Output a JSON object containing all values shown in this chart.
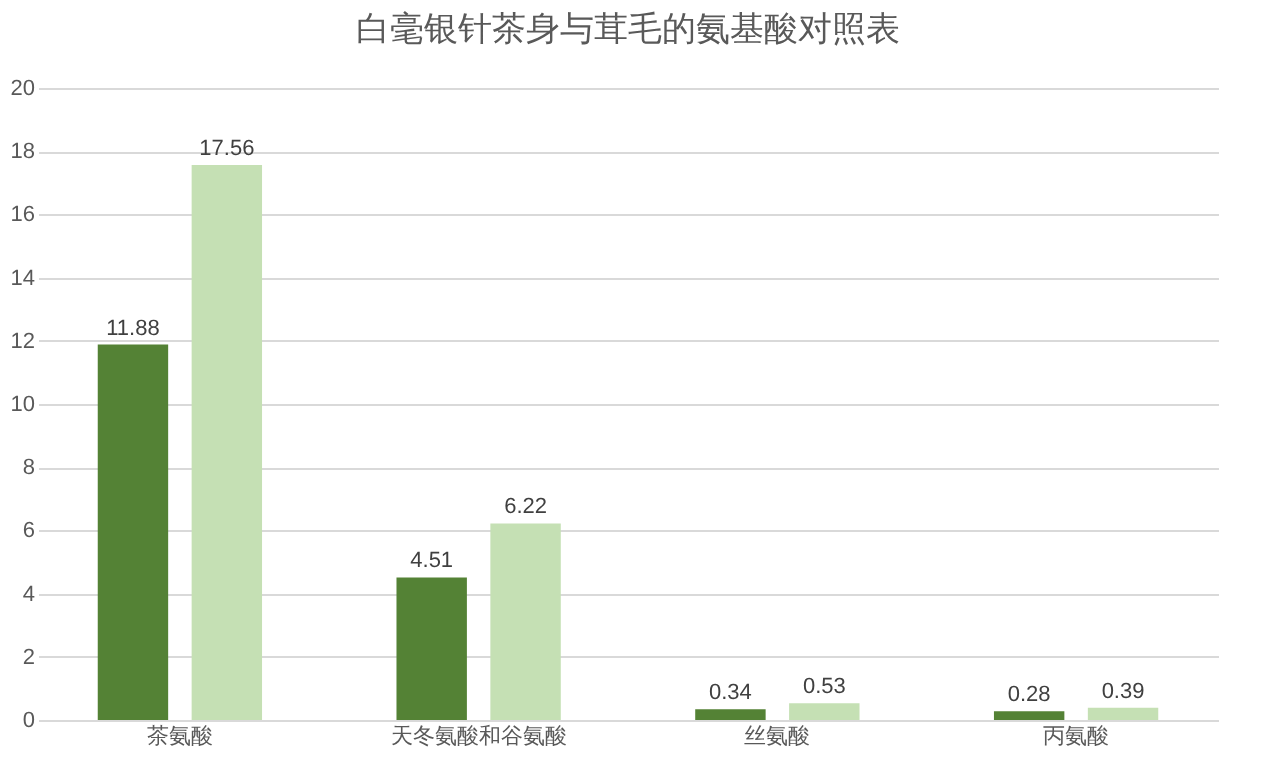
{
  "chart_data": {
    "type": "bar",
    "title": "白毫银针茶身与茸毛的氨基酸对照表",
    "categories": [
      "茶氨酸",
      "天冬氨酸和谷氨酸",
      "丝氨酸",
      "丙氨酸"
    ],
    "series": [
      {
        "color": "#548235",
        "values": [
          11.88,
          4.51,
          0.34,
          0.28
        ]
      },
      {
        "color": "#c5e0b4",
        "values": [
          17.56,
          6.22,
          0.53,
          0.39
        ]
      }
    ],
    "ylim": [
      0,
      20
    ],
    "yticks": [
      0,
      2,
      4,
      6,
      8,
      10,
      12,
      14,
      16,
      18,
      20
    ],
    "grid": "y",
    "data_labels": true,
    "legend": false
  }
}
